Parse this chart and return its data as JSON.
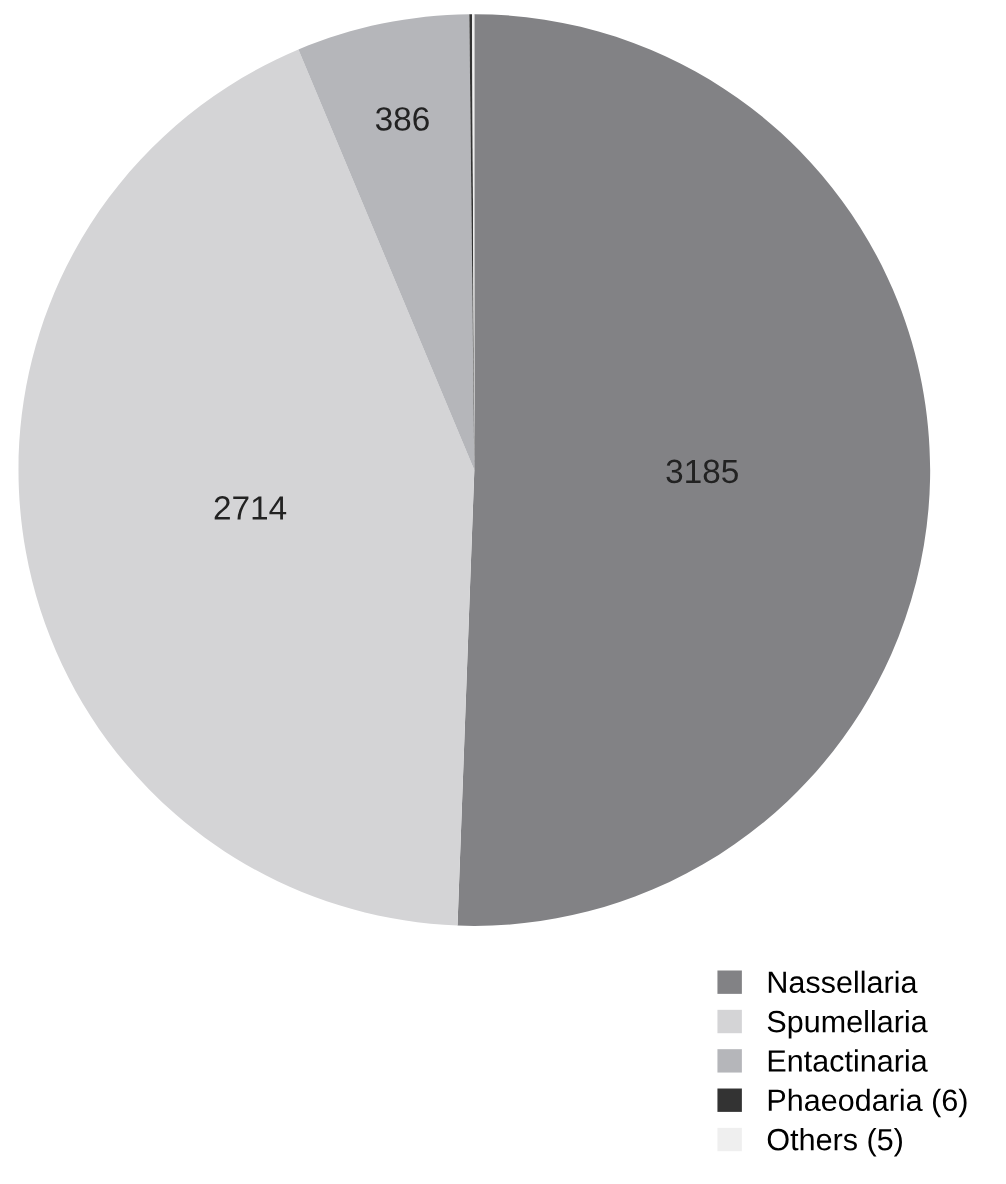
{
  "chart_data": {
    "type": "pie",
    "categories": [
      "Nassellaria",
      "Spumellaria",
      "Entactinaria",
      "Phaeodaria (6)",
      "Others (5)"
    ],
    "values": [
      3185,
      2714,
      386,
      6,
      5
    ],
    "colors": [
      "#828285",
      "#d4d4d6",
      "#b5b6ba",
      "#333333",
      "#efefef"
    ],
    "value_labels": [
      "3185",
      "2714",
      "386",
      null,
      null
    ],
    "legend": "bottom right"
  }
}
